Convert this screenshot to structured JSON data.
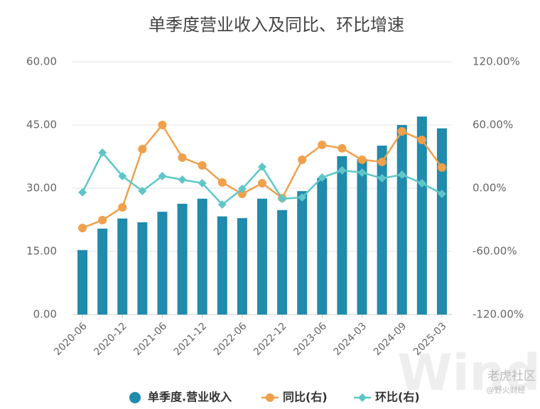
{
  "chart_data": {
    "type": "bar-line",
    "title": "单季度营业收入及同比、环比增速",
    "categories": [
      "2020-06",
      null,
      "2020-12",
      null,
      "2021-06",
      null,
      "2021-12",
      null,
      "2022-06",
      null,
      "2022-12",
      null,
      "2023-06",
      null,
      "2024-03",
      null,
      "2024-09",
      null,
      "2025-03"
    ],
    "series": [
      {
        "name": "单季度.营业收入",
        "color": "#1f8bad",
        "kind": "bar",
        "axis": "y",
        "values": [
          15.3,
          20.4,
          22.8,
          21.9,
          24.4,
          26.3,
          27.5,
          23.3,
          22.9,
          27.5,
          24.8,
          29.3,
          32.4,
          37.6,
          36.9,
          40.1,
          45.0,
          47.0,
          44.2
        ]
      },
      {
        "name": "同比(右)",
        "color": "#f0a04b",
        "kind": "line",
        "marker": "circle",
        "axis": "y2",
        "values": [
          -37.8,
          -30.3,
          -18.2,
          37.1,
          60.0,
          29.0,
          21.6,
          5.4,
          -5.4,
          4.7,
          -9.4,
          27.0,
          41.1,
          37.8,
          27.0,
          24.9,
          53.9,
          45.8,
          19.6
        ]
      },
      {
        "name": "环比(右)",
        "color": "#5fc6c8",
        "kind": "line",
        "marker": "diamond",
        "axis": "y2",
        "values": [
          -4.0,
          33.7,
          11.5,
          -2.7,
          11.5,
          8.1,
          4.7,
          -15.5,
          -0.7,
          20.2,
          -10.1,
          -8.8,
          10.1,
          16.9,
          14.8,
          9.4,
          12.8,
          4.7,
          -5.4
        ]
      }
    ],
    "ylim": [
      0,
      60
    ],
    "yticks": [
      {
        "value": 0,
        "label": "0.00"
      },
      {
        "value": 15,
        "label": "15.00"
      },
      {
        "value": 30,
        "label": "30.00"
      },
      {
        "value": 45,
        "label": "45.00"
      },
      {
        "value": 60,
        "label": "60.00"
      }
    ],
    "y2lim": [
      -120,
      120
    ],
    "y2ticks": [
      {
        "value": -120,
        "label": "-120.00%"
      },
      {
        "value": -60,
        "label": "-60.00%"
      },
      {
        "value": 0,
        "label": "0.00%"
      },
      {
        "value": 60,
        "label": "60.00%"
      },
      {
        "value": 120,
        "label": "120.00%"
      }
    ],
    "grid": true,
    "legend": "bottom",
    "watermarks": [
      "Wind",
      "老虎社区",
      "@野火财经"
    ]
  }
}
